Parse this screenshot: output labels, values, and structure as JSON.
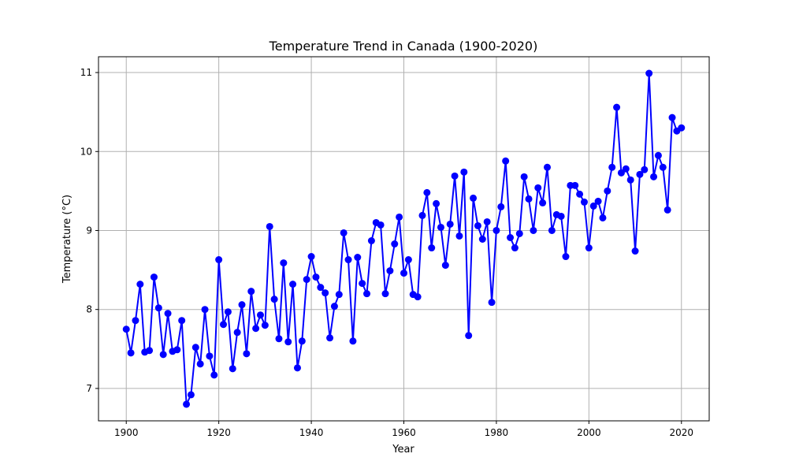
{
  "chart_data": {
    "type": "line",
    "title": "Temperature Trend in Canada (1900-2020)",
    "xlabel": "Year",
    "ylabel": "Temperature (°C)",
    "xlim": [
      1894,
      2026
    ],
    "ylim": [
      6.59,
      11.2
    ],
    "xticks": [
      1900,
      1920,
      1940,
      1960,
      1980,
      2000,
      2020
    ],
    "yticks": [
      7,
      8,
      9,
      10,
      11
    ],
    "grid": true,
    "marker": "circle",
    "color": "#0000ff",
    "x": [
      1900,
      1901,
      1902,
      1903,
      1904,
      1905,
      1906,
      1907,
      1908,
      1909,
      1910,
      1911,
      1912,
      1913,
      1914,
      1915,
      1916,
      1917,
      1918,
      1919,
      1920,
      1921,
      1922,
      1923,
      1924,
      1925,
      1926,
      1927,
      1928,
      1929,
      1930,
      1931,
      1932,
      1933,
      1934,
      1935,
      1936,
      1937,
      1938,
      1939,
      1940,
      1941,
      1942,
      1943,
      1944,
      1945,
      1946,
      1947,
      1948,
      1949,
      1950,
      1951,
      1952,
      1953,
      1954,
      1955,
      1956,
      1957,
      1958,
      1959,
      1960,
      1961,
      1962,
      1963,
      1964,
      1965,
      1966,
      1967,
      1968,
      1969,
      1970,
      1971,
      1972,
      1973,
      1974,
      1975,
      1976,
      1977,
      1978,
      1979,
      1980,
      1981,
      1982,
      1983,
      1984,
      1985,
      1986,
      1987,
      1988,
      1989,
      1990,
      1991,
      1992,
      1993,
      1994,
      1995,
      1996,
      1997,
      1998,
      1999,
      2000,
      2001,
      2002,
      2003,
      2004,
      2005,
      2006,
      2007,
      2008,
      2009,
      2010,
      2011,
      2012,
      2013,
      2014,
      2015,
      2016,
      2017,
      2018,
      2019,
      2020
    ],
    "y": [
      7.75,
      7.45,
      7.86,
      8.32,
      7.46,
      7.48,
      8.41,
      8.02,
      7.43,
      7.95,
      7.47,
      7.49,
      7.86,
      6.8,
      6.92,
      7.52,
      7.31,
      8.0,
      7.41,
      7.17,
      8.63,
      7.81,
      7.97,
      7.25,
      7.71,
      8.06,
      7.44,
      8.23,
      7.76,
      7.93,
      7.8,
      9.05,
      8.13,
      7.63,
      8.59,
      7.59,
      8.32,
      7.26,
      7.6,
      8.38,
      8.67,
      8.41,
      8.28,
      8.21,
      7.64,
      8.04,
      8.19,
      8.97,
      8.63,
      7.6,
      8.66,
      8.33,
      8.2,
      8.87,
      9.1,
      9.07,
      8.2,
      8.49,
      8.83,
      9.17,
      8.46,
      8.63,
      8.19,
      8.16,
      9.19,
      9.48,
      8.78,
      9.34,
      9.04,
      8.56,
      9.08,
      9.69,
      8.93,
      9.74,
      7.67,
      9.41,
      9.06,
      8.89,
      9.11,
      8.09,
      9.0,
      9.3,
      9.88,
      8.91,
      8.78,
      8.96,
      9.68,
      9.4,
      9.0,
      9.54,
      9.35,
      9.8,
      9.0,
      9.2,
      9.18,
      8.67,
      9.57,
      9.57,
      9.46,
      9.36,
      8.78,
      9.31,
      9.37,
      9.16,
      9.5,
      9.8,
      10.56,
      9.73,
      9.78,
      9.64,
      8.74,
      9.71,
      9.77,
      10.99,
      9.68,
      9.95,
      9.8,
      9.26,
      10.43,
      10.26,
      10.3
    ]
  }
}
